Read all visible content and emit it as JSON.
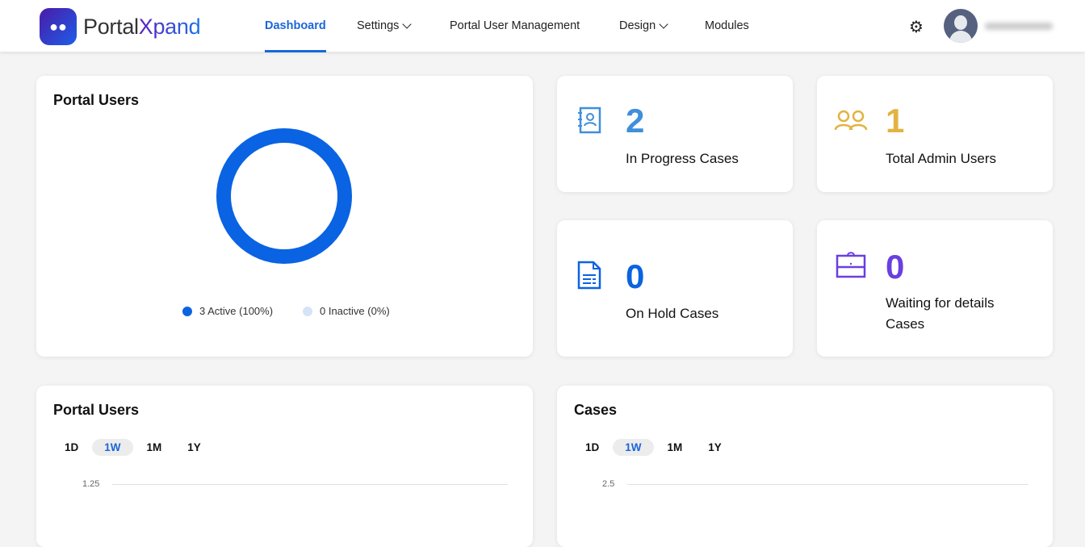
{
  "brand": {
    "name_part1": "Portal",
    "name_part2": "Xpand"
  },
  "nav": {
    "items": [
      {
        "label": "Dashboard",
        "active": true
      },
      {
        "label": "Settings",
        "dropdown": true
      },
      {
        "label": "Portal User Management"
      },
      {
        "label": "Design",
        "dropdown": true
      },
      {
        "label": "Modules"
      }
    ]
  },
  "header": {
    "settings_icon": "gear-icon",
    "avatar_icon": "user-avatar"
  },
  "portal_users_donut": {
    "title": "Portal Users",
    "active_legend": "3 Active (100%)",
    "inactive_legend": "0 Inactive (0%)",
    "active_value": 3,
    "inactive_value": 0,
    "active_color": "#0a63e2",
    "inactive_color": "#d6e4f7"
  },
  "stats": [
    {
      "value": "2",
      "label": "In Progress Cases",
      "icon": "contact-book-icon",
      "color": "#3f8fdb"
    },
    {
      "value": "1",
      "label": "Total Admin Users",
      "icon": "users-icon",
      "color": "#e3b341"
    },
    {
      "value": "0",
      "label": "On Hold Cases",
      "icon": "document-icon",
      "color": "#0a63e2"
    },
    {
      "value": "0",
      "label": "Waiting for details Cases",
      "icon": "briefcase-icon",
      "color": "#6a3fe0"
    }
  ],
  "portal_users_chart": {
    "title": "Portal Users",
    "ranges": [
      "1D",
      "1W",
      "1M",
      "1Y"
    ],
    "selected": "1W",
    "y_tick": "1.25"
  },
  "cases_chart": {
    "title": "Cases",
    "ranges": [
      "1D",
      "1W",
      "1M",
      "1Y"
    ],
    "selected": "1W",
    "y_tick": "2.5"
  }
}
